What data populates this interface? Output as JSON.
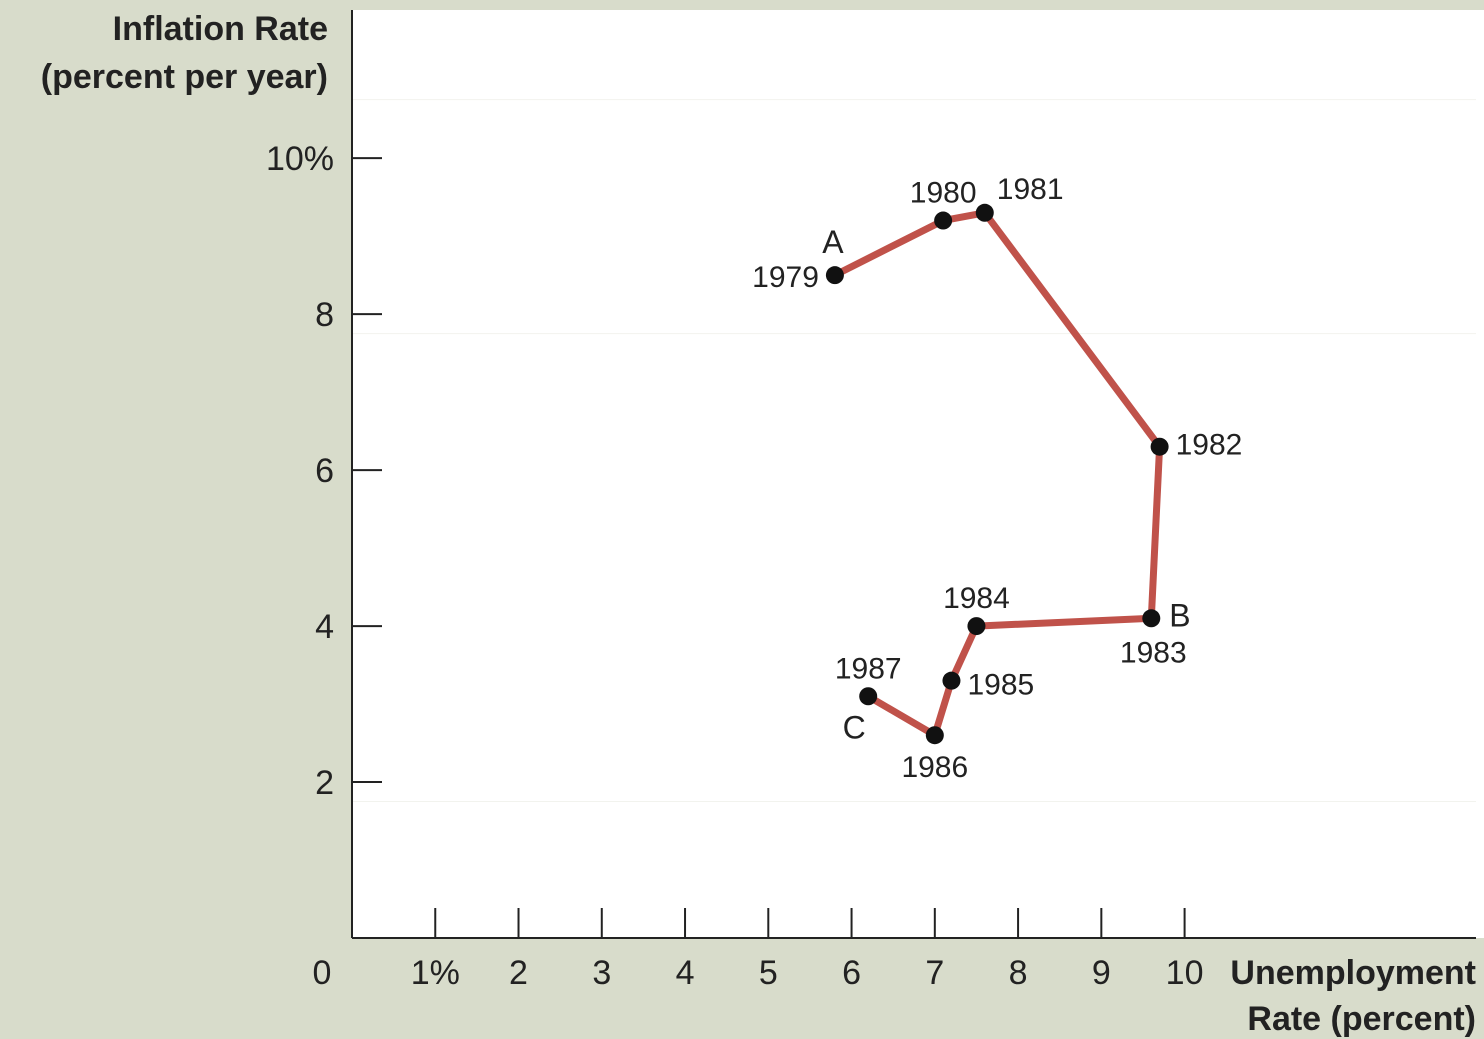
{
  "chart_data": {
    "type": "line",
    "ylabel": [
      "Inflation Rate",
      "(percent per year)"
    ],
    "xlabel": [
      "Unemployment",
      "Rate (percent)"
    ],
    "xlim": [
      0,
      13.5
    ],
    "ylim": [
      0,
      11.9
    ],
    "x_ticks": [
      {
        "value": 1,
        "label": "1%"
      },
      {
        "value": 2,
        "label": "2"
      },
      {
        "value": 3,
        "label": "3"
      },
      {
        "value": 4,
        "label": "4"
      },
      {
        "value": 5,
        "label": "5"
      },
      {
        "value": 6,
        "label": "6"
      },
      {
        "value": 7,
        "label": "7"
      },
      {
        "value": 8,
        "label": "8"
      },
      {
        "value": 9,
        "label": "9"
      },
      {
        "value": 10,
        "label": "10"
      }
    ],
    "y_ticks": [
      {
        "value": 2,
        "label": "2"
      },
      {
        "value": 4,
        "label": "4"
      },
      {
        "value": 6,
        "label": "6"
      },
      {
        "value": 8,
        "label": "8"
      },
      {
        "value": 10,
        "label": "10%"
      }
    ],
    "origin_label": "0",
    "line_color": "#c0524a",
    "background_color": "#d8dccb",
    "plot_background": "#ffffff",
    "series": [
      {
        "points": [
          {
            "year": "1979",
            "x": 5.8,
            "y": 8.5,
            "letter": "A"
          },
          {
            "year": "1980",
            "x": 7.1,
            "y": 9.2
          },
          {
            "year": "1981",
            "x": 7.6,
            "y": 9.3
          },
          {
            "year": "1982",
            "x": 9.7,
            "y": 6.3
          },
          {
            "year": "1983",
            "x": 9.6,
            "y": 4.1,
            "letter": "B"
          },
          {
            "year": "1984",
            "x": 7.5,
            "y": 4.0
          },
          {
            "year": "1985",
            "x": 7.2,
            "y": 3.3
          },
          {
            "year": "1986",
            "x": 7.0,
            "y": 2.6
          },
          {
            "year": "1987",
            "x": 6.2,
            "y": 3.1,
            "letter": "C"
          }
        ]
      }
    ]
  }
}
